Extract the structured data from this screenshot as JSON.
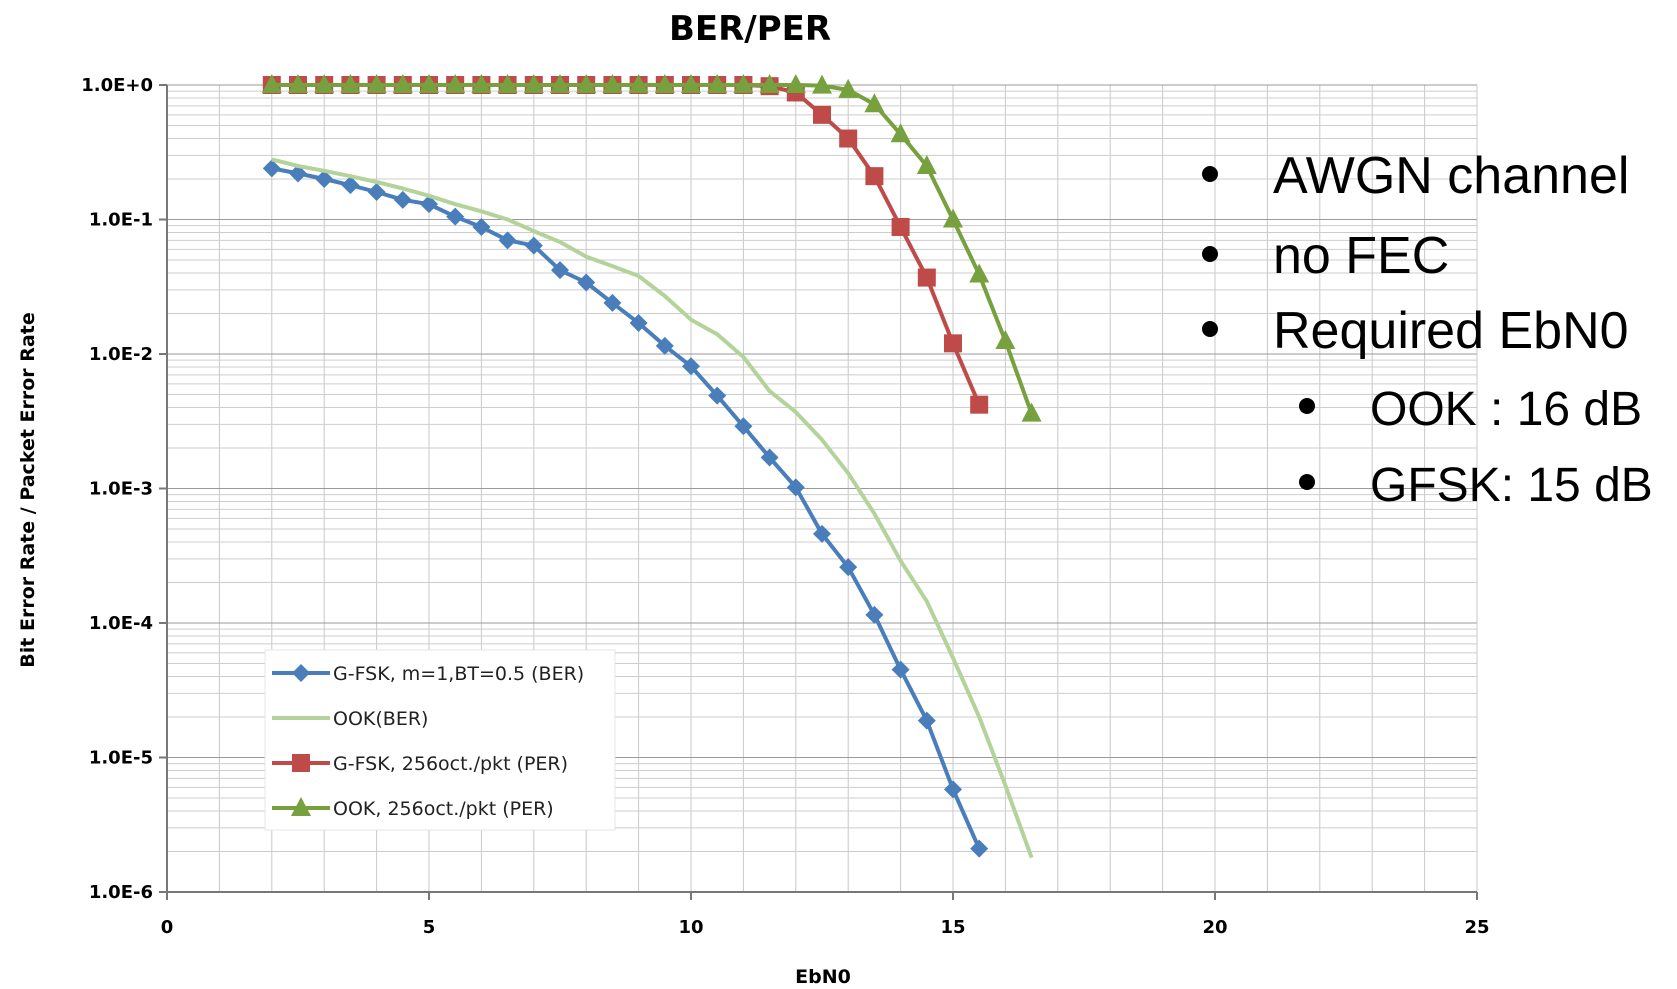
{
  "chart_data": {
    "type": "line",
    "title": "BER/PER",
    "xlabel": "EbN0",
    "ylabel": "Bit Error Rate / Packet Error Rate",
    "xlim": [
      0,
      25
    ],
    "ylim": [
      1e-06,
      1
    ],
    "yscale": "log",
    "grid": true,
    "x_ticks": [
      0,
      5,
      10,
      15,
      20,
      25
    ],
    "x_tick_labels": [
      "0",
      "5",
      "10",
      "15",
      "20",
      "25"
    ],
    "y_ticks": [
      1,
      0.1,
      0.01,
      0.001,
      0.0001,
      1e-05,
      1e-06
    ],
    "y_tick_labels": [
      "1.0E+0",
      "1.0E-1",
      "1.0E-2",
      "1.0E-3",
      "1.0E-4",
      "1.0E-5",
      "1.0E-6"
    ],
    "legend_position": "bottom-left",
    "series": [
      {
        "name": "G-FSK, m=1,BT=0.5 (BER)",
        "color": "#4a7ebb",
        "marker": "diamond",
        "x": [
          2,
          2.5,
          3,
          3.5,
          4,
          4.5,
          5,
          5.5,
          6,
          6.5,
          7,
          7.5,
          8,
          8.5,
          9,
          9.5,
          10,
          10.5,
          11,
          11.5,
          12,
          12.5,
          13,
          13.5,
          14,
          14.5,
          15,
          15.5
        ],
        "y": [
          0.24,
          0.22,
          0.2,
          0.18,
          0.16,
          0.14,
          0.13,
          0.105,
          0.088,
          0.07,
          0.064,
          0.042,
          0.034,
          0.024,
          0.017,
          0.0115,
          0.0081,
          0.0049,
          0.0029,
          0.0017,
          0.00102,
          0.00046,
          0.00026,
          0.000115,
          4.5e-05,
          1.88e-05,
          5.8e-06,
          2.1e-06
        ]
      },
      {
        "name": "OOK(BER)",
        "color": "#b3d39b",
        "marker": "none",
        "x": [
          2,
          2.5,
          3,
          3.5,
          4,
          4.5,
          5,
          5.5,
          6,
          6.5,
          7,
          7.5,
          8,
          8.5,
          9,
          9.5,
          10,
          10.5,
          11,
          11.5,
          12,
          12.5,
          13,
          13.5,
          14,
          14.5,
          15,
          15.5,
          16,
          16.5
        ],
        "y": [
          0.28,
          0.25,
          0.23,
          0.21,
          0.19,
          0.17,
          0.15,
          0.13,
          0.115,
          0.1,
          0.082,
          0.068,
          0.053,
          0.045,
          0.038,
          0.027,
          0.018,
          0.014,
          0.0095,
          0.0053,
          0.0037,
          0.0023,
          0.0013,
          0.00065,
          0.00029,
          0.000145,
          5.5e-05,
          2e-05,
          6.2e-06,
          1.8e-06
        ]
      },
      {
        "name": "G-FSK, 256oct./pkt (PER)",
        "color": "#be4b48",
        "marker": "square",
        "x": [
          2,
          2.5,
          3,
          3.5,
          4,
          4.5,
          5,
          5.5,
          6,
          6.5,
          7,
          7.5,
          8,
          8.5,
          9,
          9.5,
          10,
          10.5,
          11,
          11.5,
          12,
          12.5,
          13,
          13.5,
          14,
          14.5,
          15,
          15.5
        ],
        "y": [
          1,
          1,
          1,
          1,
          1,
          1,
          1,
          1,
          1,
          1,
          1,
          1,
          1,
          1,
          1,
          1,
          1,
          1,
          1,
          0.98,
          0.88,
          0.6,
          0.4,
          0.21,
          0.088,
          0.037,
          0.012,
          0.0042
        ]
      },
      {
        "name": "OOK, 256oct./pkt (PER)",
        "color": "#77a03e",
        "marker": "triangle",
        "x": [
          2,
          2.5,
          3,
          3.5,
          4,
          4.5,
          5,
          5.5,
          6,
          6.5,
          7,
          7.5,
          8,
          8.5,
          9,
          9.5,
          10,
          10.5,
          11,
          11.5,
          12,
          12.5,
          13,
          13.5,
          14,
          14.5,
          15,
          15.5,
          16,
          16.5
        ],
        "y": [
          1,
          1,
          1,
          1,
          1,
          1,
          1,
          1,
          1,
          1,
          1,
          1,
          1,
          1,
          1,
          1,
          1,
          1,
          1,
          1,
          1,
          0.99,
          0.92,
          0.72,
          0.43,
          0.25,
          0.1,
          0.039,
          0.0125,
          0.0036
        ]
      }
    ],
    "annotations": [
      {
        "text": "AWGN channel",
        "level": 1
      },
      {
        "text": "no FEC",
        "level": 1
      },
      {
        "text": "Required EbN0",
        "level": 1
      },
      {
        "text": "OOK :  16 dB",
        "level": 2
      },
      {
        "text": "GFSK: 15 dB",
        "level": 2
      }
    ]
  }
}
